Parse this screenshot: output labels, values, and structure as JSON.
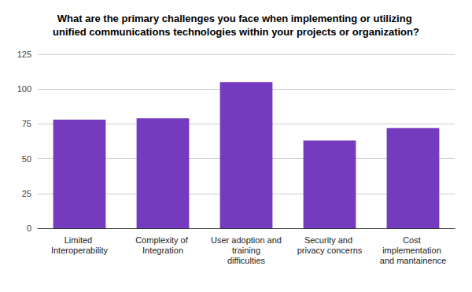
{
  "chart_data": {
    "type": "bar",
    "title": "What are the primary challenges you face when implementing or utilizing unified communications technologies within your projects or organization?",
    "categories": [
      "Limited Interoperability",
      "Complexity of Integration",
      "User adoption and training difficulties",
      "Security and privacy concerns",
      "Cost implementation and mantainence"
    ],
    "values": [
      78,
      79,
      105,
      63,
      72
    ],
    "color": "#743bbf",
    "ylim": [
      0,
      125
    ],
    "yticks": [
      0,
      25,
      50,
      75,
      100,
      125
    ],
    "grid": true
  }
}
